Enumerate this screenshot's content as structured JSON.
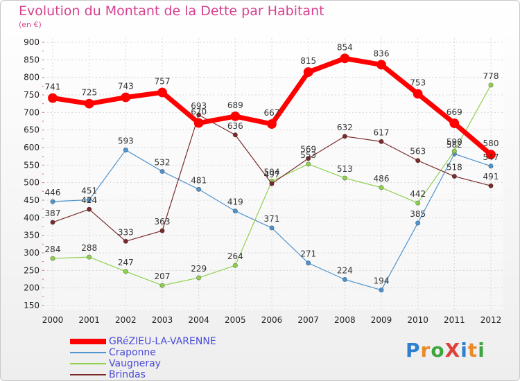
{
  "title": "Evolution du Montant de la Dette par Habitant",
  "subtitle": "(en €)",
  "brand": {
    "text": "ProXiti",
    "letter_colors": [
      "#2f7fd1",
      "#e98b2a",
      "#3ea63e",
      "#e0403a",
      "#2f7fd1",
      "#e98b2a",
      "#3ea63e"
    ]
  },
  "chart_data": {
    "type": "line",
    "x": [
      "2000",
      "2001",
      "2002",
      "2003",
      "2004",
      "2005",
      "2006",
      "2007",
      "2008",
      "2009",
      "2010",
      "2011",
      "2012"
    ],
    "ylim": [
      150,
      900
    ],
    "yticks": [
      150,
      200,
      250,
      300,
      350,
      400,
      450,
      500,
      550,
      600,
      650,
      700,
      750,
      800,
      850,
      900
    ],
    "grid": true,
    "series": [
      {
        "name": "GRéZIEU-LA-VARENNE",
        "color": "#ff0000",
        "values": [
          741,
          725,
          743,
          757,
          670,
          689,
          667,
          815,
          854,
          836,
          753,
          669,
          580
        ],
        "emphasis": true
      },
      {
        "name": "Craponne",
        "color": "#4f94cd",
        "values": [
          446,
          451,
          593,
          532,
          481,
          419,
          371,
          271,
          224,
          194,
          385,
          582,
          547
        ]
      },
      {
        "name": "Vaugneray",
        "color": "#8fd14f",
        "values": [
          284,
          288,
          247,
          207,
          229,
          264,
          504,
          553,
          513,
          486,
          442,
          590,
          778
        ]
      },
      {
        "name": "Brindas",
        "color": "#7a2a2a",
        "values": [
          387,
          424,
          333,
          363,
          693,
          636,
          497,
          569,
          632,
          617,
          563,
          518,
          491
        ]
      }
    ],
    "legend_position": "bottom-left"
  }
}
